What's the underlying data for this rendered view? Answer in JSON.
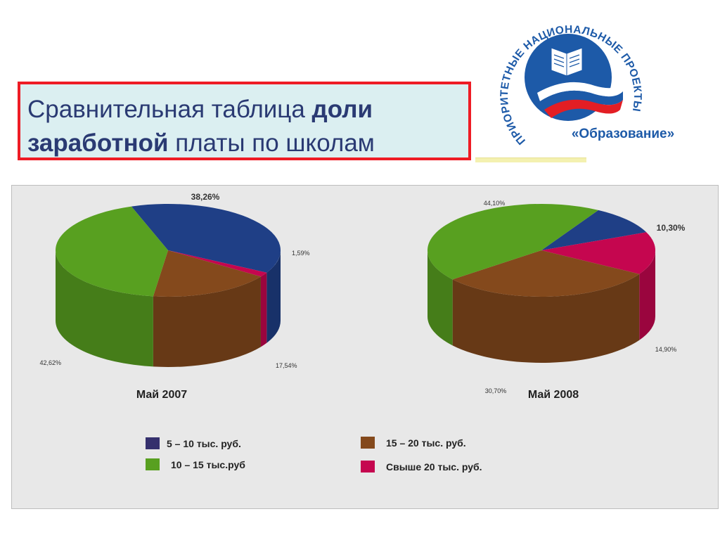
{
  "title": {
    "part1": "Сравнительная таблица ",
    "part2": "доли",
    "part3": "заработной",
    "part4": " платы по школам"
  },
  "logo": {
    "arc_text": "ПРИОРИТЕТНЫЕ НАЦИОНАЛЬНЫЕ ПРОЕКТЫ",
    "bottom_text": "«Образование»"
  },
  "colors": {
    "5_10": "#1f3f86",
    "10_15": "#58a020",
    "15_20": "#84491c",
    "over_20": "#c5064f"
  },
  "chart_data": [
    {
      "type": "pie",
      "subtitle": "Май 2007",
      "slices": [
        {
          "category": "5 – 10 тыс. руб.",
          "value": 38.26,
          "label": "38,26%"
        },
        {
          "category": "Свыше 20 тыс. руб.",
          "value": 1.59,
          "label": "1,59%"
        },
        {
          "category": "15 – 20 тыс. руб.",
          "value": 17.54,
          "label": "17,54%"
        },
        {
          "category": "10 – 15 тыс.руб",
          "value": 42.62,
          "label": "42,62%"
        }
      ]
    },
    {
      "type": "pie",
      "subtitle": "Май 2008",
      "slices": [
        {
          "category": "5 – 10 тыс. руб.",
          "value": 10.3,
          "label": "10,30%"
        },
        {
          "category": "Свыше 20 тыс. руб.",
          "value": 14.9,
          "label": "14,90%"
        },
        {
          "category": "15 – 20 тыс. руб.",
          "value": 30.7,
          "label": "30,70%"
        },
        {
          "category": "10 – 15 тыс.руб",
          "value": 44.1,
          "label": "44,10%"
        }
      ]
    }
  ],
  "legend": [
    {
      "label": "5 – 10 тыс. руб.",
      "color": "#35306d"
    },
    {
      "label": "10 – 15 тыс.руб",
      "color": "#58a020"
    },
    {
      "label": "15 – 20 тыс. руб.",
      "color": "#84491c"
    },
    {
      "label": "Свыше 20 тыс. руб.",
      "color": "#c5064f"
    }
  ]
}
